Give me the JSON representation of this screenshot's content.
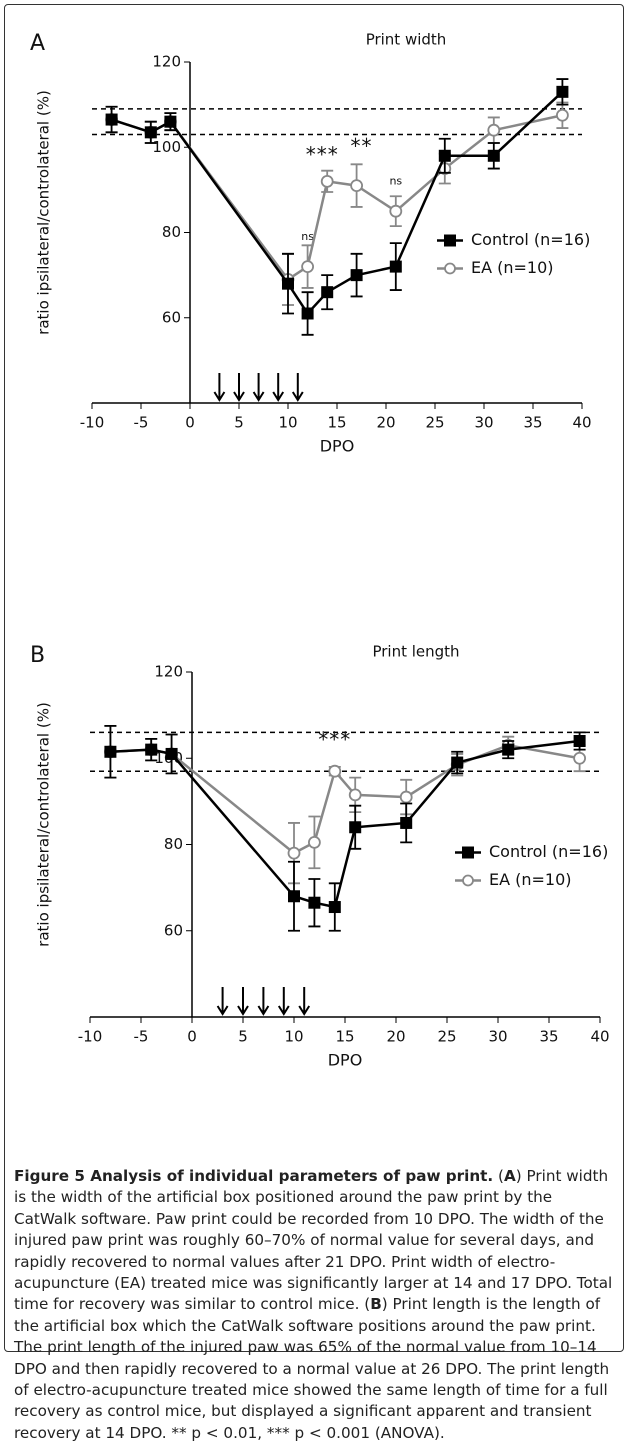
{
  "chart_data": [
    {
      "type": "line",
      "panel": "A",
      "title": "Print width",
      "xlabel": "DPO",
      "ylabel": "ratio ipsilateral/controlateral (%)",
      "x": [
        -8,
        -4,
        -2,
        10,
        12,
        14,
        17,
        21,
        26,
        31,
        38
      ],
      "series": [
        {
          "name": "Control (n=16)",
          "color": "#000000",
          "marker": "square",
          "values": [
            106.5,
            103.5,
            106,
            68,
            61,
            66,
            70,
            72,
            98,
            98,
            113
          ],
          "errors": [
            3,
            2.5,
            2,
            7,
            5,
            4,
            5,
            5.5,
            4,
            3,
            3
          ]
        },
        {
          "name": "EA (n=10)",
          "color": "#888888",
          "marker": "circle",
          "values": [
            106.5,
            103.5,
            106,
            69,
            72,
            92,
            91,
            85,
            95,
            104,
            107.5
          ],
          "errors": [
            3,
            2.5,
            2,
            6,
            5,
            2.5,
            5,
            3.5,
            3.5,
            3,
            3
          ]
        }
      ],
      "xlim": [
        -10,
        40
      ],
      "ylim": [
        40,
        120
      ],
      "xticks": [
        -10,
        -5,
        0,
        5,
        10,
        15,
        20,
        25,
        30,
        35,
        40
      ],
      "yticks": [
        60,
        80,
        100,
        120
      ],
      "reference_lines": [
        109,
        103
      ],
      "arrows": [
        3,
        5,
        7,
        9,
        11
      ],
      "annotations": [
        {
          "text": "ns",
          "x": 12,
          "y": 79
        },
        {
          "text": "***",
          "x": 13.5,
          "y": 98
        },
        {
          "text": "**",
          "x": 17.5,
          "y": 100
        },
        {
          "text": "ns",
          "x": 21,
          "y": 92
        }
      ],
      "legend": "center right"
    },
    {
      "type": "line",
      "panel": "B",
      "title": "Print length",
      "xlabel": "DPO",
      "ylabel": "ratio ipsilateral/controlateral (%)",
      "x": [
        -8,
        -4,
        -2,
        10,
        12,
        14,
        16,
        21,
        26,
        31,
        38
      ],
      "series": [
        {
          "name": "Control (n=16)",
          "color": "#000000",
          "marker": "square",
          "values": [
            101.5,
            102,
            101,
            68,
            66.5,
            65.5,
            84,
            85,
            99,
            102,
            104
          ],
          "errors": [
            6,
            2.5,
            4.5,
            8,
            5.5,
            5.5,
            5,
            4.5,
            2.5,
            2,
            2
          ]
        },
        {
          "name": "EA (n=10)",
          "color": "#888888",
          "marker": "circle",
          "values": [
            101.5,
            102,
            101,
            78,
            80.5,
            97,
            91.5,
            91,
            98.5,
            103,
            100
          ],
          "errors": [
            6,
            2.5,
            4.5,
            7,
            6,
            1,
            4,
            4,
            2.5,
            2,
            3
          ]
        }
      ],
      "xlim": [
        -10,
        40
      ],
      "ylim": [
        40,
        120
      ],
      "xticks": [
        -10,
        -5,
        0,
        5,
        10,
        15,
        20,
        25,
        30,
        35,
        40
      ],
      "yticks": [
        60,
        80,
        100,
        120
      ],
      "reference_lines": [
        106,
        97
      ],
      "arrows": [
        3,
        5,
        7,
        9,
        11
      ],
      "annotations": [
        {
          "text": "***",
          "x": 14,
          "y": 104
        }
      ],
      "legend": "center right"
    }
  ],
  "caption": {
    "label": "Figure 5 Analysis of individual parameters of paw print.",
    "parts": [
      " (",
      "A",
      ") Print width is the width of the artificial box positioned around the paw print by the CatWalk software. Paw print could be recorded from 10 DPO. The width of the injured paw print was roughly 60–70% of normal value for several days, and rapidly recovered to normal values after 21 DPO. Print width of electro-acupuncture (EA) treated mice was significantly larger at 14 and 17 DPO. Total time for recovery was similar to control mice. (",
      "B",
      ") Print length is the length of the artificial box which the CatWalk software positions around the paw print. The print length of the injured paw was 65% of the normal value from 10–14 DPO and then rapidly recovered to a normal value at 26 DPO. The print length of electro-acupuncture treated mice showed the same length of time for a full recovery as control mice, but displayed a significant apparent and transient recovery at 14 DPO. ** p < 0.01, *** p < 0.001 (ANOVA)."
    ]
  }
}
